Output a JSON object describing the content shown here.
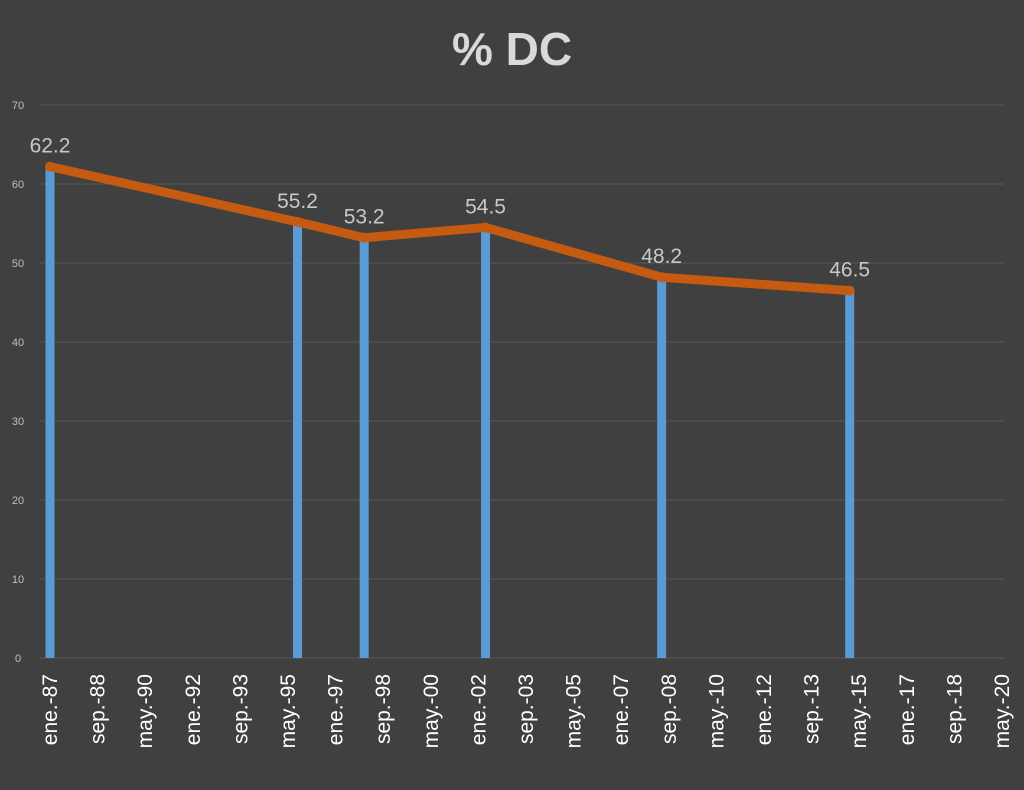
{
  "chart_data": {
    "type": "line",
    "title": "% DC",
    "xlabel": "",
    "ylabel": "",
    "ylim": [
      0,
      70
    ],
    "yticks": [
      0,
      10,
      20,
      30,
      40,
      50,
      60,
      70
    ],
    "grid": true,
    "categories": [
      "ene.-87",
      "sep.-88",
      "may.-90",
      "ene.-92",
      "sep.-93",
      "may.-95",
      "ene.-97",
      "sep.-98",
      "may.-00",
      "ene.-02",
      "sep.-03",
      "may.-05",
      "ene.-07",
      "sep.-08",
      "may.-10",
      "ene.-12",
      "sep.-13",
      "may.-15",
      "ene.-17",
      "sep.-18",
      "may.-20"
    ],
    "x_start": "1987-01",
    "x_end": "2020-05",
    "series": [
      {
        "chart_type": "bar",
        "color": "#5b9bd5",
        "points": [
          {
            "x": "1987-01",
            "y": 62.2
          },
          {
            "x": "1995-09",
            "y": 55.2
          },
          {
            "x": "1998-01",
            "y": 53.2
          },
          {
            "x": "2002-04",
            "y": 54.5
          },
          {
            "x": "2008-06",
            "y": 48.2
          },
          {
            "x": "2015-01",
            "y": 46.5
          }
        ]
      },
      {
        "chart_type": "line",
        "color": "#c55a11",
        "points": [
          {
            "x": "1987-01",
            "y": 62.2,
            "label": "62.2"
          },
          {
            "x": "1995-09",
            "y": 55.2,
            "label": "55.2"
          },
          {
            "x": "1998-01",
            "y": 53.2,
            "label": "53.2"
          },
          {
            "x": "2002-04",
            "y": 54.5,
            "label": "54.5"
          },
          {
            "x": "2008-06",
            "y": 48.2,
            "label": "48.2"
          },
          {
            "x": "2015-01",
            "y": 46.5,
            "label": "46.5"
          }
        ]
      }
    ]
  }
}
